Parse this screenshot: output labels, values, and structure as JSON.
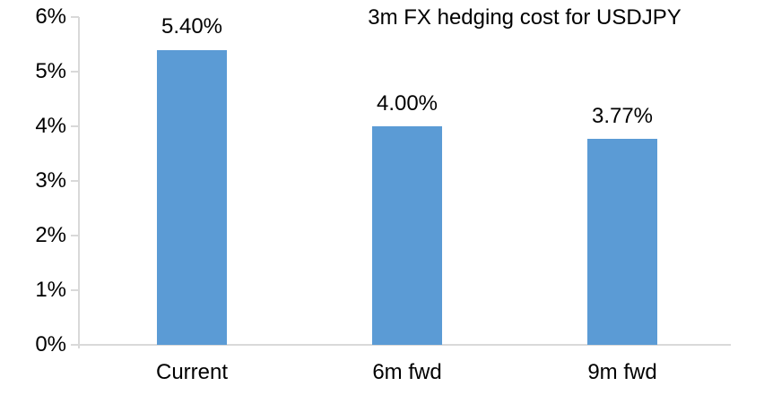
{
  "colors": {
    "bar_fill": "#5b9bd5",
    "axis_line": "#d9d9d9",
    "text": "#000000",
    "background": "#ffffff"
  },
  "chart_data": {
    "type": "bar",
    "title": "3m FX hedging cost for USDJPY",
    "categories": [
      "Current",
      "6m fwd",
      "9m fwd"
    ],
    "values": [
      5.4,
      4.0,
      3.77
    ],
    "value_labels": [
      "5.40%",
      "4.00%",
      "3.77%"
    ],
    "xlabel": "",
    "ylabel": "",
    "ylim": [
      0,
      6
    ],
    "ytick_values": [
      0,
      1,
      2,
      3,
      4,
      5,
      6
    ],
    "ytick_labels": [
      "0%",
      "1%",
      "2%",
      "3%",
      "4%",
      "5%",
      "6%"
    ],
    "grid": false,
    "legend": null,
    "bar_count": 3
  }
}
